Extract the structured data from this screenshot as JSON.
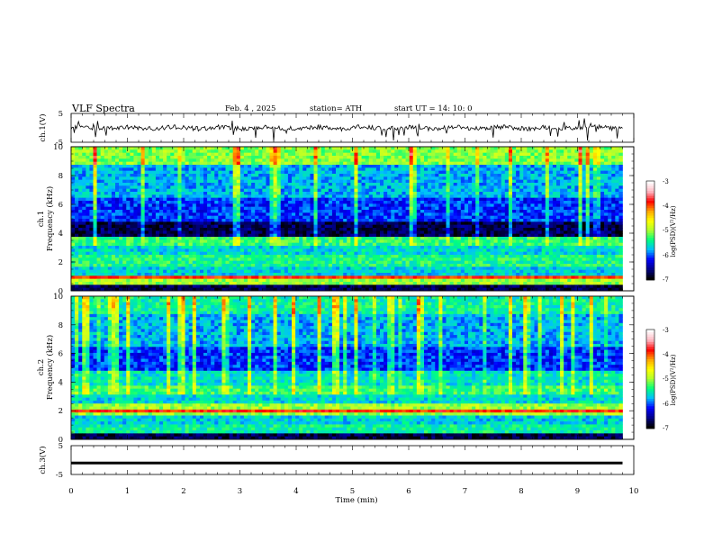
{
  "header": {
    "title": "VLF Spectra",
    "date": "Feb. 4 , 2025",
    "station": "station= ATH",
    "start": "start UT = 14: 10: 0"
  },
  "chart_data": [
    {
      "type": "line",
      "name": "ch1-waveform",
      "ylabel": "ch.1(V)",
      "ylim": [
        -5,
        5
      ],
      "yticks": [
        "5",
        "-5"
      ],
      "baseline": 0,
      "note": "noisy waveform near 0 V with sparse negative spikes"
    },
    {
      "type": "heatmap",
      "name": "ch1-spectrogram",
      "ylabel": "ch.1\nFrequency (kHz)",
      "ylim": [
        0,
        10
      ],
      "yticks": [
        "0",
        "2",
        "4",
        "6",
        "8",
        "10"
      ],
      "colorbar": {
        "label": "log(PSD)(V²/Hz)",
        "range": [
          -7,
          -3
        ],
        "ticks": [
          "-3",
          "-4",
          "-5",
          "-6",
          "-7"
        ]
      }
    },
    {
      "type": "heatmap",
      "name": "ch2-spectrogram",
      "ylabel": "ch.2\nFrequency (kHz)",
      "ylim": [
        0,
        10
      ],
      "yticks": [
        "0",
        "2",
        "4",
        "6",
        "8",
        "10"
      ],
      "colorbar": {
        "label": "log(PSD)(V²/Hz)",
        "range": [
          -7,
          -3
        ],
        "ticks": [
          "-3",
          "-4",
          "-5",
          "-6",
          "-7"
        ]
      }
    },
    {
      "type": "line",
      "name": "ch3-waveform",
      "ylabel": "ch.3(V)",
      "ylim": [
        -5,
        5
      ],
      "yticks": [
        "5",
        "-5"
      ],
      "baseline": -1,
      "note": "flat thick trace slightly below 0 V"
    }
  ],
  "xaxis": {
    "label": "Time (min)",
    "xlim": [
      0,
      10
    ],
    "ticks": [
      "0",
      "1",
      "2",
      "3",
      "4",
      "5",
      "6",
      "7",
      "8",
      "9",
      "10"
    ],
    "data_end": 9.8
  },
  "colormap": [
    "#000000",
    "#00008b",
    "#0000ff",
    "#00bfff",
    "#00ff7f",
    "#adff2f",
    "#ffff00",
    "#ffa500",
    "#ff0000",
    "#ffb6c1",
    "#ffffff"
  ],
  "colors": {
    "axis": "#000000",
    "trace": "#000000"
  }
}
